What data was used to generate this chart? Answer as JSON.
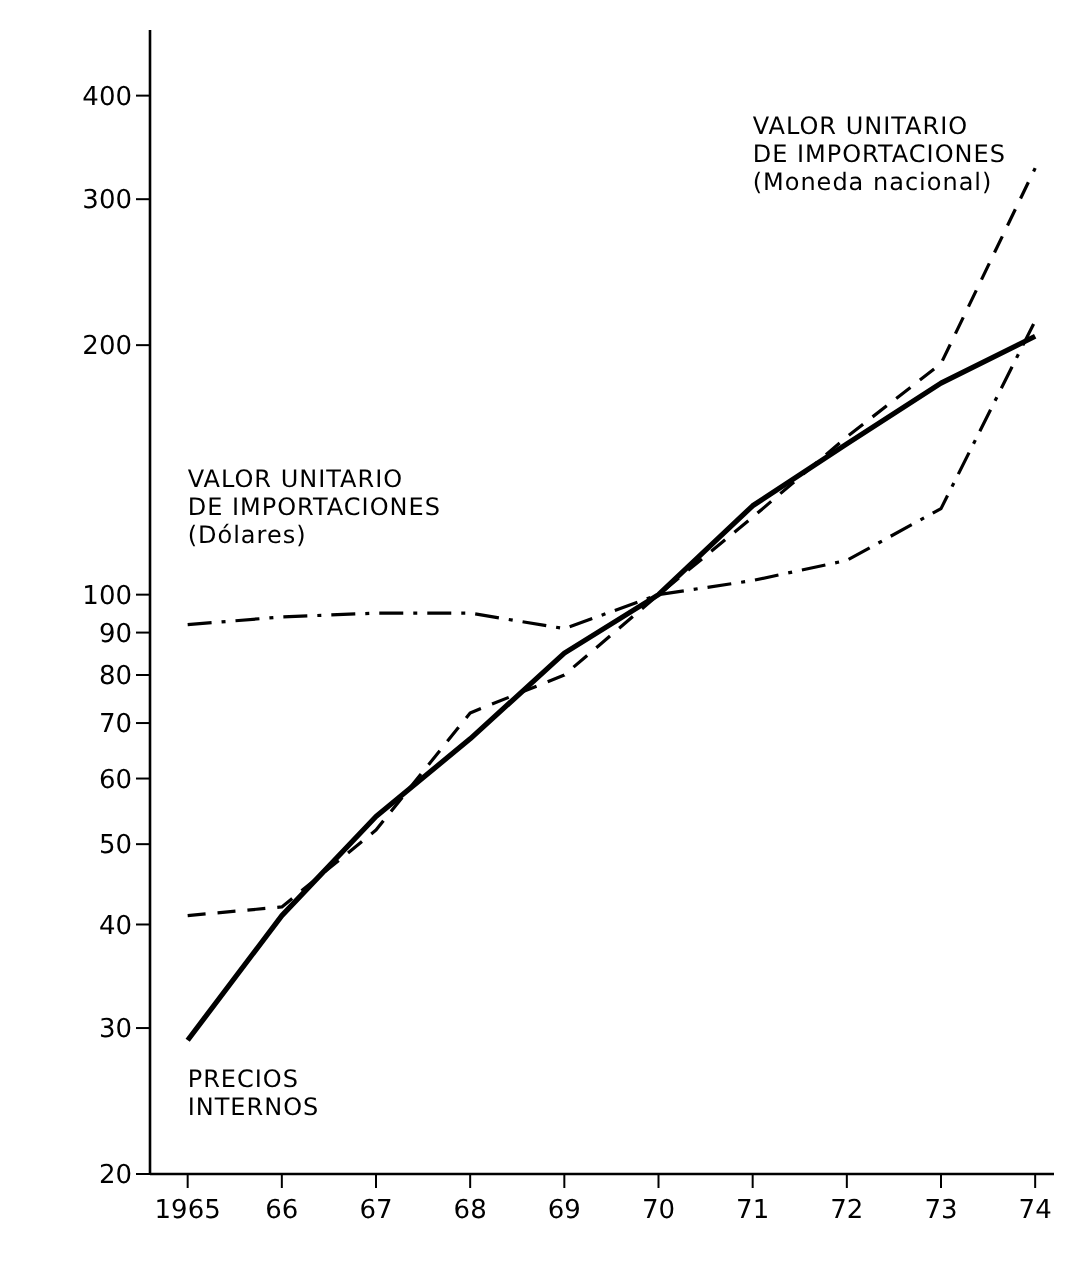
{
  "chart_data": {
    "type": "line",
    "log": "y",
    "x": [
      1965,
      1966,
      1967,
      1968,
      1969,
      1970,
      1971,
      1972,
      1973,
      1974
    ],
    "xlim": [
      1964.6,
      1974.2
    ],
    "xticks": [
      {
        "value": 1965,
        "label": "1965"
      },
      {
        "value": 1966,
        "label": "66"
      },
      {
        "value": 1967,
        "label": "67"
      },
      {
        "value": 1968,
        "label": "68"
      },
      {
        "value": 1969,
        "label": "69"
      },
      {
        "value": 1970,
        "label": "70"
      },
      {
        "value": 1971,
        "label": "71"
      },
      {
        "value": 1972,
        "label": "72"
      },
      {
        "value": 1973,
        "label": "73"
      },
      {
        "value": 1974,
        "label": "74"
      }
    ],
    "ylim": [
      20,
      480
    ],
    "yticks": [
      20,
      30,
      40,
      50,
      60,
      70,
      80,
      90,
      100,
      200,
      300,
      400
    ],
    "grid": false,
    "series": [
      {
        "name": "PRECIOS\nINTERNOS",
        "color": "#000000",
        "line_style": "solid",
        "values": [
          29,
          41,
          54,
          67,
          85,
          100,
          128,
          152,
          180,
          205
        ]
      },
      {
        "name": "VALOR UNITARIO\nDE IMPORTACIONES\n(Moneda nacional)",
        "color": "#000000",
        "line_style": "dashed",
        "values": [
          41,
          42,
          52,
          72,
          80,
          100,
          124,
          155,
          190,
          327
        ]
      },
      {
        "name": "VALOR UNITARIO\nDE IMPORTACIONES\n(Dólares)",
        "color": "#000000",
        "line_style": "dashdot",
        "values": [
          92,
          94,
          95,
          95,
          91,
          100,
          104,
          110,
          127,
          214
        ]
      }
    ]
  }
}
